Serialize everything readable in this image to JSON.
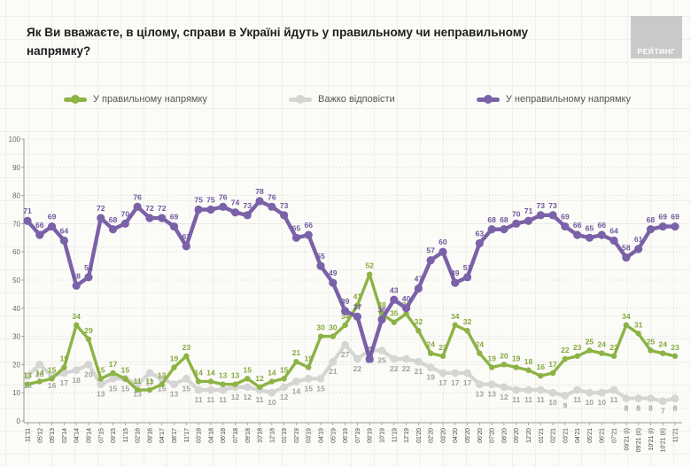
{
  "header": {
    "title_line1": "Як Ви вважаєте, в цілому, справи в Україні йдуть у правильному чи неправильному",
    "title_line2": "напрямку?",
    "logo_text": "РЕЙТИНГ"
  },
  "chart_data": {
    "type": "line",
    "title": "Як Ви вважаєте, в цілому, справи в Україні йдуть у правильному чи неправильному напрямку?",
    "categories": [
      "11'11",
      "05'12",
      "05'13",
      "02'14",
      "04'14",
      "09'14",
      "07'15",
      "09'15",
      "11'15",
      "02'16",
      "09'16",
      "04'17",
      "08'17",
      "11'17",
      "03'18",
      "04'18",
      "06'18",
      "07'18",
      "09'18",
      "10'18",
      "12'18",
      "01'19",
      "02'19",
      "03'19",
      "04'19",
      "05'19",
      "06'19",
      "07'19",
      "09'19",
      "10'19",
      "11'19",
      "12'19",
      "01'20",
      "02'20",
      "03'20",
      "04'20",
      "05'20",
      "06'20",
      "07'20",
      "08'20",
      "09'20",
      "12'20",
      "01'21",
      "02'21",
      "03'21",
      "04'21",
      "05'21",
      "06'21",
      "07'21",
      "09'21 (I)",
      "09'21 (II)",
      "10'21 (I)",
      "10'21 (II)",
      "11'21"
    ],
    "series": [
      {
        "name": "У правильному напрямку",
        "color": "#8cb344",
        "label_color": "#86a93e",
        "values": [
          13,
          14,
          15,
          19,
          34,
          29,
          15,
          17,
          15,
          11,
          11,
          13,
          19,
          23,
          14,
          14,
          13,
          13,
          15,
          12,
          14,
          15,
          21,
          19,
          30,
          30,
          34,
          41,
          52,
          38,
          35,
          38,
          32,
          24,
          23,
          34,
          32,
          24,
          19,
          20,
          19,
          18,
          16,
          17,
          22,
          23,
          25,
          24,
          23,
          34,
          31,
          25,
          24,
          23
        ]
      },
      {
        "name": "Важко відповісти",
        "color": "#d5d5d3",
        "label_color": "#a2a2a0",
        "values": [
          16,
          20,
          16,
          17,
          18,
          20,
          13,
          15,
          15,
          13,
          17,
          15,
          13,
          15,
          11,
          11,
          11,
          12,
          12,
          11,
          10,
          12,
          14,
          15,
          15,
          21,
          27,
          22,
          25,
          25,
          22,
          22,
          21,
          19,
          17,
          17,
          17,
          13,
          13,
          12,
          11,
          11,
          11,
          10,
          9,
          11,
          10,
          10,
          11,
          8,
          8,
          8,
          7,
          8
        ]
      },
      {
        "name": "У неправильному напрямку",
        "color": "#7a61a8",
        "label_color": "#70589c",
        "values": [
          71,
          66,
          69,
          64,
          48,
          51,
          72,
          68,
          70,
          76,
          72,
          72,
          69,
          62,
          75,
          75,
          76,
          74,
          73,
          78,
          76,
          73,
          65,
          66,
          55,
          49,
          39,
          37,
          22,
          36,
          43,
          40,
          47,
          57,
          60,
          49,
          51,
          63,
          68,
          68,
          70,
          71,
          73,
          73,
          69,
          66,
          65,
          66,
          64,
          58,
          61,
          68,
          69,
          69
        ]
      }
    ],
    "ylim": [
      0,
      100
    ],
    "yticks": [
      0,
      10,
      20,
      30,
      40,
      50,
      60,
      70,
      80,
      90,
      100
    ],
    "grid": "dotted-horizontal",
    "legend_position": "top",
    "xlabel": "",
    "ylabel": ""
  }
}
